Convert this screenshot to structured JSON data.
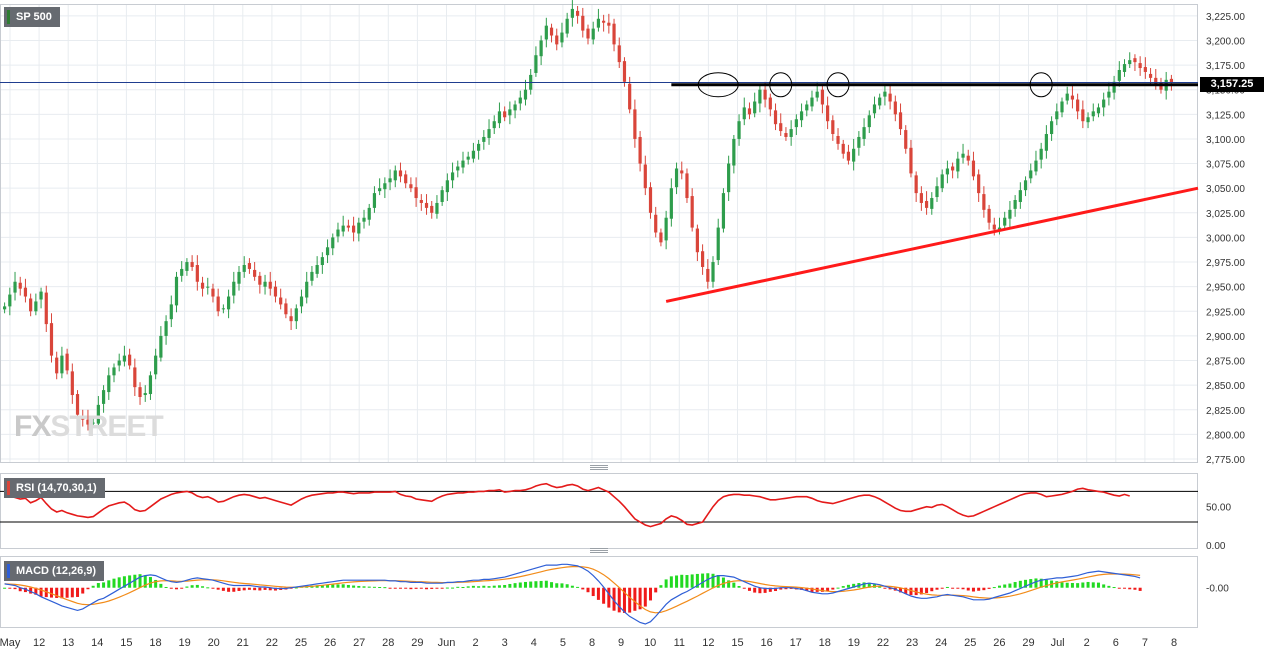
{
  "symbol": {
    "label": "SP 500",
    "accent": "#2e7d32"
  },
  "last_price": {
    "value": 3157.25,
    "label": "3,157.25"
  },
  "watermark": {
    "left": "FX",
    "right": "STREET"
  },
  "colors": {
    "bull": "#2e9d4c",
    "bear": "#d9453a",
    "trendline": "#ff1a1a",
    "resistance": "#000000",
    "rsi": "#e41a1a",
    "macd": "#2f5fd6",
    "signal": "#f28c1a",
    "hist_pos": "#22d922",
    "hist_neg": "#f01a1a",
    "grid": "#e8ecf0",
    "price_line": "#1f3d8f"
  },
  "chart_data": [
    {
      "type": "candlestick",
      "title": "SP 500",
      "ylim": [
        2772,
        3237
      ],
      "y_ticks": [
        "3,225.00",
        "3,200.00",
        "3,175.00",
        "3,150.00",
        "3,125.00",
        "3,100.00",
        "3,075.00",
        "3,050.00",
        "3,025.00",
        "3,000.00",
        "2,975.00",
        "2,950.00",
        "2,925.00",
        "2,900.00",
        "2,875.00",
        "2,850.00",
        "2,825.00",
        "2,800.00",
        "2,775.00"
      ],
      "x_labels": [
        "May",
        "12",
        "13",
        "14",
        "15",
        "18",
        "19",
        "20",
        "21",
        "22",
        "25",
        "26",
        "27",
        "28",
        "29",
        "Jun",
        "2",
        "3",
        "4",
        "5",
        "8",
        "9",
        "10",
        "11",
        "12",
        "15",
        "16",
        "17",
        "18",
        "19",
        "22",
        "23",
        "24",
        "25",
        "26",
        "29",
        "Jul",
        "2",
        "6",
        "7",
        "8"
      ],
      "closes": [
        2930,
        2942,
        2955,
        2948,
        2940,
        2925,
        2935,
        2945,
        2912,
        2880,
        2862,
        2880,
        2865,
        2840,
        2820,
        2815,
        2810,
        2812,
        2830,
        2845,
        2860,
        2868,
        2875,
        2880,
        2870,
        2848,
        2838,
        2842,
        2860,
        2880,
        2900,
        2915,
        2932,
        2960,
        2968,
        2975,
        2970,
        2955,
        2948,
        2950,
        2940,
        2925,
        2928,
        2940,
        2955,
        2965,
        2972,
        2968,
        2960,
        2952,
        2955,
        2948,
        2940,
        2932,
        2922,
        2915,
        2928,
        2940,
        2955,
        2965,
        2972,
        2980,
        2990,
        3000,
        3008,
        3012,
        3010,
        3005,
        3015,
        3020,
        3030,
        3045,
        3050,
        3055,
        3060,
        3068,
        3062,
        3055,
        3050,
        3040,
        3035,
        3030,
        3025,
        3035,
        3048,
        3058,
        3066,
        3072,
        3078,
        3082,
        3088,
        3095,
        3102,
        3110,
        3118,
        3128,
        3122,
        3130,
        3135,
        3142,
        3150,
        3165,
        3185,
        3200,
        3215,
        3205,
        3196,
        3208,
        3222,
        3232,
        3225,
        3210,
        3202,
        3212,
        3222,
        3218,
        3215,
        3196,
        3178,
        3158,
        3130,
        3100,
        3075,
        3050,
        3025,
        3005,
        2995,
        3020,
        3050,
        3070,
        3065,
        3040,
        3010,
        2985,
        2970,
        2955,
        2975,
        3010,
        3045,
        3075,
        3100,
        3118,
        3132,
        3125,
        3138,
        3150,
        3140,
        3130,
        3115,
        3108,
        3102,
        3110,
        3120,
        3128,
        3135,
        3142,
        3148,
        3135,
        3118,
        3105,
        3095,
        3085,
        3078,
        3090,
        3102,
        3112,
        3124,
        3135,
        3142,
        3148,
        3138,
        3125,
        3110,
        3090,
        3065,
        3045,
        3035,
        3030,
        3040,
        3052,
        3064,
        3070,
        3068,
        3080,
        3085,
        3078,
        3062,
        3045,
        3028,
        3015,
        3008,
        3010,
        3020,
        3028,
        3038,
        3048,
        3058,
        3068,
        3078,
        3090,
        3105,
        3118,
        3128,
        3138,
        3146,
        3140,
        3128,
        3118,
        3122,
        3128,
        3132,
        3140,
        3148,
        3158,
        3170,
        3176,
        3180,
        3178,
        3172,
        3168,
        3162,
        3155,
        3150,
        3160,
        3157
      ]
    },
    {
      "type": "line",
      "title": "RSI (14,70,30,1)",
      "ylim": [
        -4,
        94
      ],
      "y_ticks": [
        "50.00",
        "0.00"
      ],
      "levels": [
        70,
        30
      ],
      "values": [
        66,
        64,
        62,
        60,
        61,
        55,
        58,
        62,
        54,
        47,
        43,
        45,
        42,
        40,
        38,
        37,
        36,
        37,
        42,
        47,
        51,
        53,
        55,
        56,
        52,
        46,
        44,
        45,
        50,
        55,
        60,
        63,
        66,
        68,
        69,
        70,
        68,
        64,
        62,
        63,
        60,
        56,
        57,
        60,
        63,
        65,
        66,
        65,
        63,
        61,
        62,
        60,
        58,
        56,
        54,
        52,
        56,
        60,
        63,
        65,
        66,
        67,
        68,
        68,
        69,
        69,
        68,
        67,
        68,
        68,
        68,
        69,
        69,
        69,
        69,
        70,
        66,
        64,
        63,
        60,
        59,
        58,
        57,
        61,
        64,
        66,
        67,
        68,
        68,
        69,
        69,
        70,
        70,
        71,
        71,
        72,
        69,
        70,
        71,
        71,
        72,
        74,
        77,
        79,
        80,
        77,
        75,
        76,
        78,
        79,
        77,
        73,
        71,
        73,
        75,
        72,
        69,
        63,
        57,
        50,
        42,
        34,
        30,
        26,
        24,
        26,
        28,
        34,
        38,
        36,
        32,
        27,
        26,
        28,
        30,
        40,
        50,
        58,
        63,
        65,
        66,
        66,
        65,
        65,
        64,
        63,
        61,
        59,
        59,
        60,
        61,
        62,
        63,
        63,
        63,
        61,
        58,
        56,
        55,
        54,
        56,
        58,
        60,
        62,
        64,
        65,
        65,
        63,
        60,
        56,
        52,
        48,
        45,
        44,
        44,
        46,
        48,
        50,
        49,
        52,
        53,
        50,
        46,
        42,
        39,
        37,
        38,
        41,
        44,
        47,
        50,
        53,
        56,
        59,
        62,
        65,
        67,
        68,
        68,
        66,
        63,
        64,
        65,
        66,
        68,
        70,
        73,
        74,
        72,
        71,
        70,
        69,
        67,
        65,
        64,
        66,
        64
      ]
    },
    {
      "type": "line",
      "title": "MACD (12,26,9)",
      "ylim": [
        -52,
        42
      ],
      "y_ticks": [
        "0.00"
      ],
      "series_colors": [
        "#2f5fd6",
        "#f28c1a"
      ],
      "macd": [
        5,
        4,
        3,
        0,
        -2,
        -5,
        -8,
        -12,
        -15,
        -18,
        -21,
        -24,
        -26,
        -28,
        -30,
        -28,
        -24,
        -20,
        -16,
        -14,
        -10,
        -6,
        -2,
        2,
        6,
        10,
        14,
        16,
        17,
        16,
        13,
        10,
        8,
        7,
        8,
        10,
        12,
        13,
        12,
        11,
        10,
        8,
        6,
        4,
        3,
        3,
        3,
        3,
        2,
        1,
        1,
        0,
        -1,
        -1,
        -1,
        0,
        1,
        2,
        3,
        4,
        5,
        6,
        7,
        8,
        9,
        10,
        10,
        10,
        10,
        10,
        10,
        10,
        10,
        10,
        9,
        9,
        8,
        8,
        7,
        7,
        7,
        6,
        6,
        6,
        6,
        7,
        7,
        8,
        8,
        9,
        10,
        10,
        11,
        11,
        12,
        13,
        14,
        16,
        18,
        20,
        22,
        24,
        26,
        28,
        30,
        30,
        30,
        31,
        31,
        30,
        29,
        26,
        22,
        16,
        9,
        1,
        -8,
        -17,
        -25,
        -32,
        -38,
        -42,
        -46,
        -48,
        -45,
        -38,
        -30,
        -22,
        -16,
        -12,
        -8,
        -5,
        -1,
        3,
        7,
        11,
        14,
        16,
        16,
        15,
        14,
        11,
        8,
        5,
        2,
        0,
        -1,
        -1,
        -1,
        0,
        0,
        0,
        -1,
        -2,
        -4,
        -6,
        -7,
        -8,
        -8,
        -7,
        -5,
        -3,
        -1,
        1,
        3,
        5,
        6,
        5,
        4,
        2,
        0,
        -2,
        -5,
        -8,
        -11,
        -13,
        -14,
        -14,
        -13,
        -12,
        -10,
        -9,
        -10,
        -11,
        -12,
        -14,
        -16,
        -16,
        -16,
        -15,
        -13,
        -11,
        -9,
        -7,
        -4,
        -1,
        2,
        5,
        8,
        10,
        11,
        12,
        13,
        13,
        14,
        15,
        16,
        18,
        20,
        21,
        22,
        21,
        20,
        19,
        18,
        17,
        16,
        15,
        13
      ]
    }
  ]
}
